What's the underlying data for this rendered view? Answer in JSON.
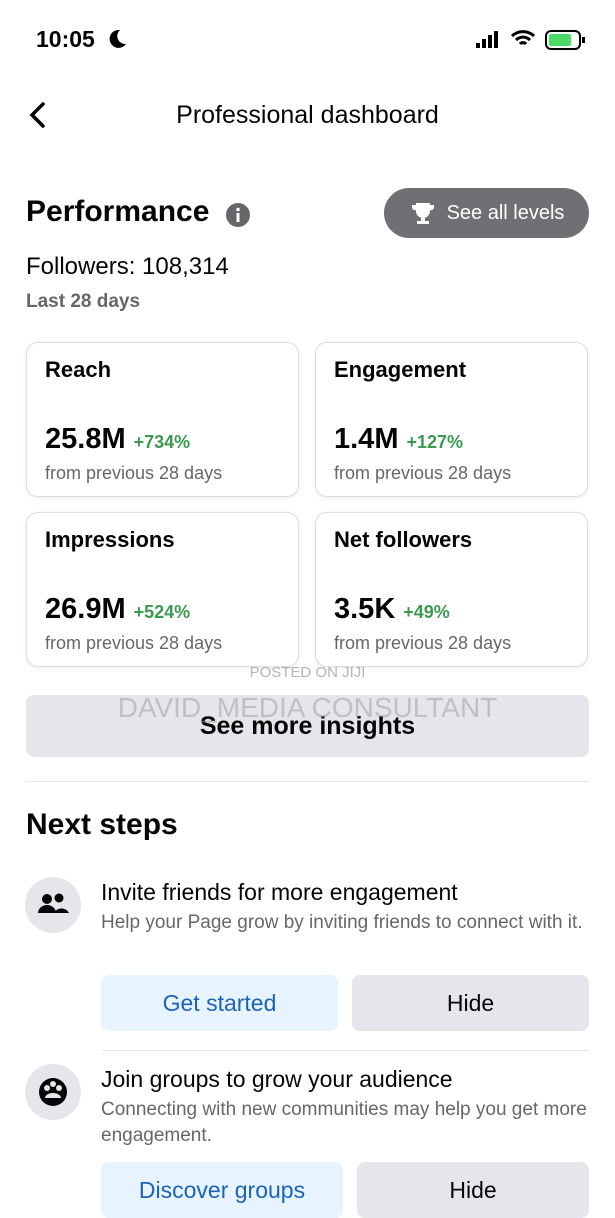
{
  "status_bar": {
    "time": "10:05"
  },
  "header": {
    "title": "Professional dashboard"
  },
  "performance": {
    "title": "Performance",
    "levels_button": "See all levels",
    "followers": "Followers: 108,314",
    "period": "Last 28 days",
    "cards": [
      {
        "label": "Reach",
        "value": "25.8M",
        "change": "+734%",
        "comparison": "from previous 28 days"
      },
      {
        "label": "Engagement",
        "value": "1.4M",
        "change": "+127%",
        "comparison": "from previous 28 days"
      },
      {
        "label": "Impressions",
        "value": "26.9M",
        "change": "+524%",
        "comparison": "from previous 28 days"
      },
      {
        "label": "Net followers",
        "value": "3.5K",
        "change": "+49%",
        "comparison": "from previous 28 days"
      }
    ],
    "insights_button": "See more insights"
  },
  "watermark": {
    "line1": "POSTED ON JIJI",
    "line2": "DAVID_MEDIA CONSULTANT"
  },
  "next_steps": {
    "title": "Next steps",
    "items": [
      {
        "title": "Invite friends for more engagement",
        "description": "Help your Page grow by inviting friends to connect with it.",
        "primary_button": "Get started",
        "secondary_button": "Hide"
      },
      {
        "title": "Join groups to grow your audience",
        "description": "Connecting with new communities may help you get more engagement.",
        "primary_button": "Discover groups",
        "secondary_button": "Hide"
      }
    ]
  }
}
